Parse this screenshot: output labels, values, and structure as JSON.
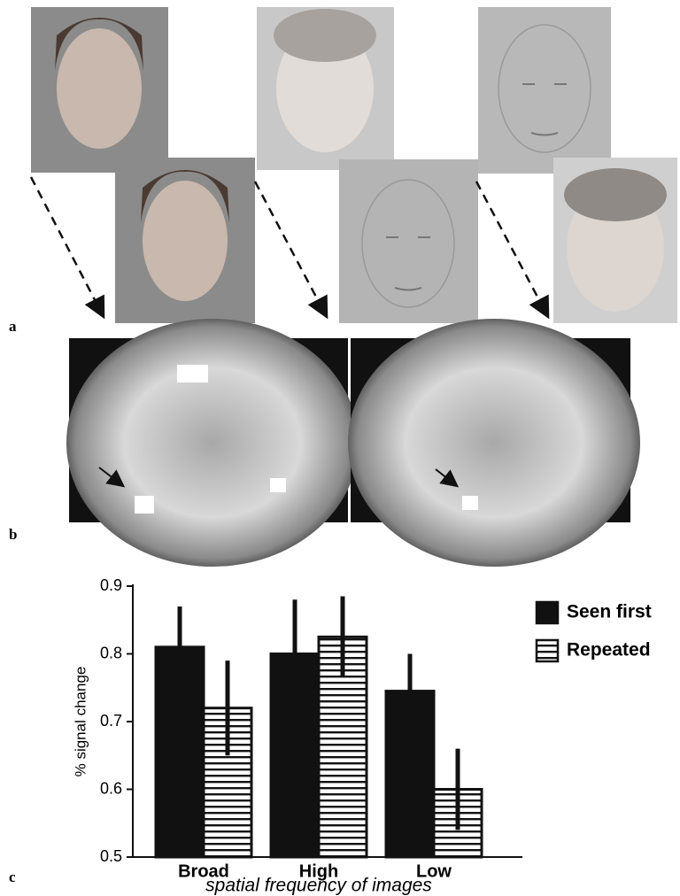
{
  "panel_labels": [
    "a",
    "b",
    "c"
  ],
  "chart_data": {
    "type": "bar",
    "categories": [
      "Broad",
      "High",
      "Low"
    ],
    "series": [
      {
        "name": "Seen first",
        "color": "#111111",
        "fill": "solid",
        "values": [
          0.81,
          0.8,
          0.745
        ],
        "errors": [
          0.06,
          0.08,
          0.055
        ]
      },
      {
        "name": "Repeated",
        "color": "#111111",
        "fill": "hatched",
        "values": [
          0.72,
          0.825,
          0.6
        ],
        "errors": [
          0.07,
          0.06,
          0.06
        ]
      }
    ],
    "y_label": "% signal change",
    "x_label": "spatial frequency of images",
    "ylim": [
      0.5,
      0.9
    ],
    "yticks": [
      0.5,
      0.6,
      0.7,
      0.8,
      0.9
    ],
    "legend": "right"
  }
}
